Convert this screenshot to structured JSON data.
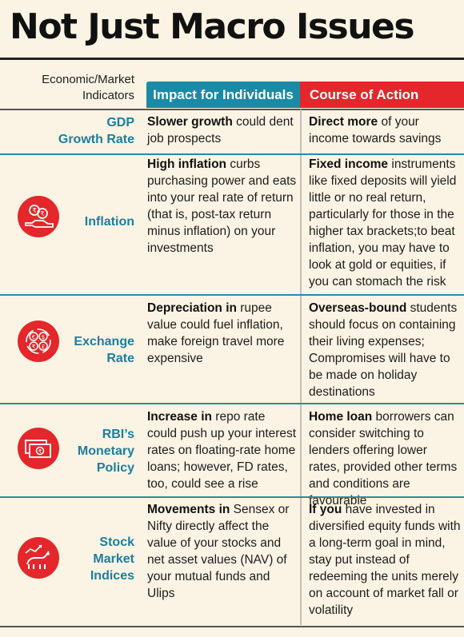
{
  "title": "Not Just Macro Issues",
  "headers": {
    "indicator": "Economic/Market Indicators",
    "impact": "Impact for Individuals",
    "action": "Course of Action"
  },
  "rows": [
    {
      "label_lines": [
        "GDP",
        "Growth Rate"
      ],
      "icon": "",
      "impact": {
        "bold": "Slower growth",
        "rest": " could dent job prospects"
      },
      "action": {
        "bold": "Direct more",
        "rest": " of your income towards savings"
      }
    },
    {
      "label_lines": [
        "Inflation"
      ],
      "icon": "rupee-coins-hand-icon",
      "impact": {
        "bold": "High inflation",
        "rest": " curbs purchasing power and eats into your real rate of return (that is, post-tax return minus inflation) on your investments"
      },
      "action": {
        "bold": "Fixed income",
        "rest": " instruments like fixed deposits will yield little or no real return, particularly for those in the higher tax brackets;to beat inflation, you may have to look at gold or equities, if you can stomach the risk"
      }
    },
    {
      "label_lines": [
        "Exchange",
        "Rate"
      ],
      "icon": "currency-exchange-icon",
      "impact": {
        "bold": "Depreciation in",
        "rest": " rupee value could fuel inflation, make foreign travel more expensive"
      },
      "action": {
        "bold": "Overseas-bound",
        "rest": " students should focus on containing their living expenses; Compromises will have to be made on holiday destinations"
      }
    },
    {
      "label_lines": [
        "RBI’s",
        "Monetary",
        "Policy"
      ],
      "icon": "rupee-banknote-icon",
      "impact": {
        "bold": "Increase in",
        "rest": " repo rate could push up your interest rates on floating-rate home loans; however, FD rates, too, could see a rise"
      },
      "action": {
        "bold": "Home loan",
        "rest": " borrowers can consider switching to lenders offering lower rates, provided other terms and conditions are favourable"
      }
    },
    {
      "label_lines": [
        "Stock",
        "Market",
        "Indices"
      ],
      "icon": "bull-chart-icon",
      "impact": {
        "bold": "Movements in",
        "rest": " Sensex or Nifty directly affect the value of your stocks and net asset values (NAV) of your mutual funds and Ulips"
      },
      "action": {
        "bold": "If you",
        "rest": " have invested in diversified equity funds with a long-term goal in mind, stay put instead of redeeming the units merely on account of market fall or volatility"
      }
    }
  ]
}
